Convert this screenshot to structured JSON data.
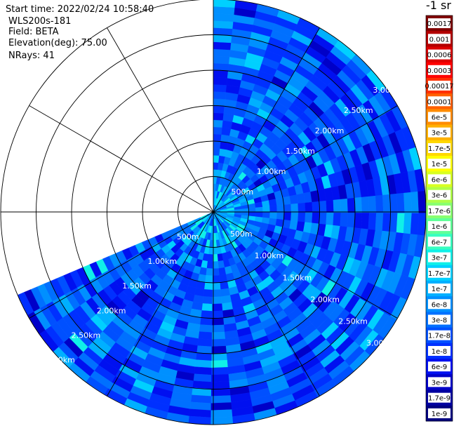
{
  "header": {
    "start_time": "Start time: 2022/02/24 10:58:40",
    "instrument": "WLS200s-181",
    "field": "Field: BETA",
    "elevation": "Elevation(deg): 75.00",
    "nrays": "NRays: 41"
  },
  "colorbar": {
    "title": "-1 sr",
    "labels": [
      "0.0017",
      "0.001",
      "0.0006",
      "0.0003",
      "0.00017",
      "0.0001",
      "6e-5",
      "3e-5",
      "1.7e-5",
      "1e-5",
      "6e-6",
      "3e-6",
      "1.7e-6",
      "1e-6",
      "6e-7",
      "3e-7",
      "1.7e-7",
      "1e-7",
      "6e-8",
      "3e-8",
      "1.7e-8",
      "1e-8",
      "6e-9",
      "3e-9",
      "1.7e-9",
      "1e-9"
    ],
    "colors": [
      "#800000",
      "#b40000",
      "#dc0000",
      "#ff0000",
      "#ff3000",
      "#ff6000",
      "#ff8c00",
      "#ffb000",
      "#ffd800",
      "#ffff00",
      "#d8ff20",
      "#b0ff48",
      "#88ff70",
      "#60ff98",
      "#38ffc0",
      "#10f0e8",
      "#00d0ff",
      "#00b0ff",
      "#0090ff",
      "#0070ff",
      "#0050ff",
      "#0030ff",
      "#0010f0",
      "#0000c8",
      "#0000a0",
      "#000080"
    ]
  },
  "chart_data": {
    "type": "polar-ppi",
    "field": "BETA",
    "units": "sr-1",
    "range_rings_km": [
      0.5,
      1.0,
      1.5,
      2.0,
      2.5,
      3.0
    ],
    "ring_labels_left": [
      "500m",
      "1.00km",
      "1.50km",
      "2.00km",
      "2.50km",
      "3.00km"
    ],
    "ring_labels_right": [
      "500m",
      "1.00km",
      "1.50km",
      "2.00km",
      "2.50km",
      "3.00km"
    ],
    "ring_labels_upper_right": [
      "500m",
      "1.00km",
      "1.50km",
      "2.00km",
      "2.50km",
      "3.00km"
    ],
    "max_range_km": 3.0,
    "sector_azimuth_deg": [
      0,
      247
    ],
    "nrays": 41,
    "dominant_value_range": [
      "1e-9",
      "1.7e-7"
    ],
    "gate_colors": [
      "#0000c8",
      "#0010f0",
      "#0030ff",
      "#0050ff",
      "#0070ff",
      "#0090ff",
      "#00b0ff",
      "#00d0ff",
      "#10f0e8"
    ],
    "gate_weights": [
      1,
      4,
      6,
      6,
      5,
      4,
      2,
      1,
      0.15
    ]
  }
}
